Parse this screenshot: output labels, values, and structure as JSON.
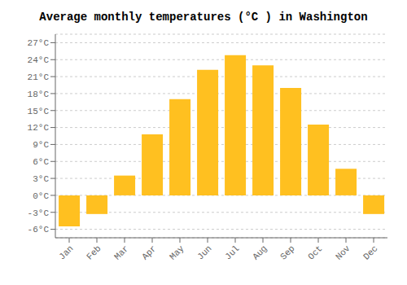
{
  "chart_data": {
    "type": "bar",
    "title": "Average monthly temperatures (°C ) in Washington",
    "categories": [
      "Jan",
      "Feb",
      "Mar",
      "Apr",
      "May",
      "Jun",
      "Jul",
      "Aug",
      "Sep",
      "Oct",
      "Nov",
      "Dec"
    ],
    "values": [
      -5.5,
      -3.3,
      3.5,
      10.8,
      17.0,
      22.2,
      24.8,
      23.0,
      19.0,
      12.5,
      4.7,
      -3.3
    ],
    "color": "#FFC020",
    "ylim": [
      -7.5,
      28.5
    ],
    "yticks": [
      {
        "value": -6,
        "label": "-6°C"
      },
      {
        "value": -3,
        "label": "-3°C"
      },
      {
        "value": 0,
        "label": "0°C"
      },
      {
        "value": 3,
        "label": "3°C"
      },
      {
        "value": 6,
        "label": "6°C"
      },
      {
        "value": 9,
        "label": "9°C"
      },
      {
        "value": 12,
        "label": "12°C"
      },
      {
        "value": 15,
        "label": "15°C"
      },
      {
        "value": 18,
        "label": "18°C"
      },
      {
        "value": 21,
        "label": "21°C"
      },
      {
        "value": 24,
        "label": "24°C"
      },
      {
        "value": 27,
        "label": "27°C"
      }
    ],
    "grid": true
  }
}
